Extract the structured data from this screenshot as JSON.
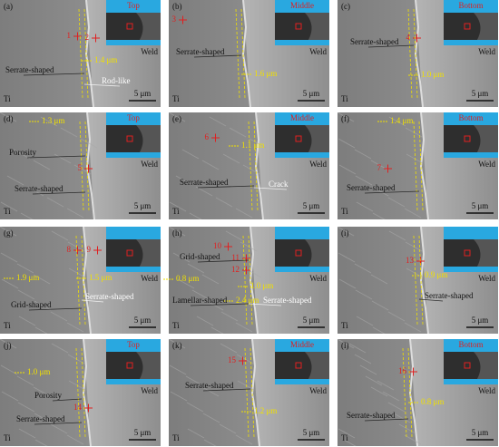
{
  "panels": [
    {
      "label": "(a)",
      "inset": "Top",
      "points": [
        "1",
        "2"
      ],
      "measures": [
        "1.4 μm"
      ],
      "notes": [
        "Serrate-shaped",
        "Rod-like"
      ],
      "ti": "Ti",
      "weld": "Weld",
      "scale": "5 μm"
    },
    {
      "label": "(b)",
      "inset": "Middle",
      "points": [
        "3"
      ],
      "measures": [
        "1.6 μm"
      ],
      "notes": [
        "Serrate-shaped"
      ],
      "ti": "Ti",
      "weld": "Weld",
      "scale": "5 μm"
    },
    {
      "label": "(c)",
      "inset": "Bottom",
      "points": [
        "4"
      ],
      "measures": [
        "1.0 μm"
      ],
      "notes": [
        "Serrate-shaped"
      ],
      "ti": "Ti",
      "weld": "Weld",
      "scale": "5 μm"
    },
    {
      "label": "(d)",
      "inset": "Top",
      "points": [
        "5"
      ],
      "measures": [
        "1.3 μm"
      ],
      "notes": [
        "Porosity",
        "Serrate-shaped"
      ],
      "ti": "Ti",
      "weld": "Weld",
      "scale": "5 μm"
    },
    {
      "label": "(e)",
      "inset": "Middle",
      "points": [
        "6"
      ],
      "measures": [
        "1.1 μm"
      ],
      "notes": [
        "Serrate-shaped",
        "Crack"
      ],
      "ti": "Ti",
      "weld": "Weld",
      "scale": "5 μm"
    },
    {
      "label": "(f)",
      "inset": "Bottom",
      "points": [
        "7"
      ],
      "measures": [
        "1.4 μm"
      ],
      "notes": [
        "Serrate-shaped"
      ],
      "ti": "Ti",
      "weld": "Weld",
      "scale": "5 μm"
    },
    {
      "label": "(g)",
      "points": [
        "8",
        "9"
      ],
      "measures": [
        "1.9 μm",
        "1.5 μm"
      ],
      "notes": [
        "Grid-shaped",
        "Serrate-shaped"
      ],
      "ti": "Ti",
      "weld": "Weld",
      "scale": "5 μm"
    },
    {
      "label": "(h)",
      "points": [
        "10",
        "11",
        "12"
      ],
      "measures": [
        "0.8 μm",
        "1.0 μm",
        "2.4 μm"
      ],
      "notes": [
        "Grid-shaped",
        "Lamellar-shaped",
        "Serrate-shaped"
      ],
      "ti": "Ti",
      "weld": "Weld",
      "scale": "5 μm"
    },
    {
      "label": "(i)",
      "points": [
        "13"
      ],
      "measures": [
        "0.9 μm"
      ],
      "notes": [
        "Serrate-shaped"
      ],
      "ti": "Ti",
      "weld": "Weld",
      "scale": "5 μm"
    },
    {
      "label": "(j)",
      "inset": "Top",
      "points": [
        "14"
      ],
      "measures": [
        "1.0 μm"
      ],
      "notes": [
        "Porosity",
        "Serrate-shaped"
      ],
      "ti": "Ti",
      "weld": "Weld",
      "scale": "5 μm"
    },
    {
      "label": "(k)",
      "inset": "Middle",
      "points": [
        "15"
      ],
      "measures": [
        "1.2 μm"
      ],
      "notes": [
        "Serrate-shaped"
      ],
      "ti": "Ti",
      "weld": "Weld",
      "scale": "5 μm"
    },
    {
      "label": "(l)",
      "inset": "Bottom",
      "points": [
        "16"
      ],
      "measures": [
        "0.8 μm"
      ],
      "notes": [
        "Serrate-shaped"
      ],
      "ti": "Ti",
      "weld": "Weld",
      "scale": "5 μm"
    }
  ]
}
